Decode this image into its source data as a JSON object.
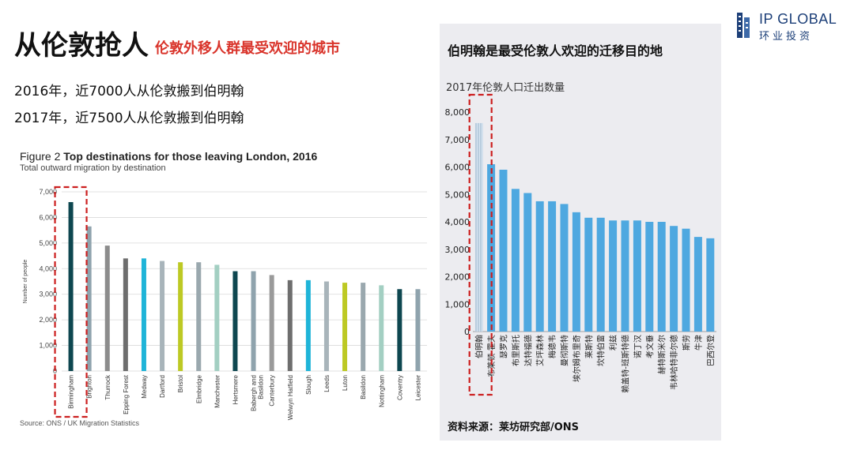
{
  "header": {
    "title": "从伦敦抢人",
    "subtitle": "伦敦外移人群最受欢迎的城市",
    "lines": [
      "2016年，近7000人从伦敦搬到伯明翰",
      "2017年，近7500人从伦敦搬到伯明翰"
    ]
  },
  "logo": {
    "name": "IP GLOBAL",
    "tagline": "环业投资",
    "icon": "building-icon",
    "color": "#1c3f78"
  },
  "left_figure": {
    "label": "Figure 2",
    "title": "Top destinations for those leaving London, 2016",
    "subtitle": "Total outward migration by destination",
    "source": "Source: ONS / UK Migration Statistics"
  },
  "right_figure": {
    "title": "伯明翰是最受伦敦人欢迎的迁移目的地",
    "subtitle": "2017年伦敦人口迁出数量",
    "source": "资料来源：莱坊研究部/ONS"
  },
  "highlight_color": "#cc1f1f",
  "chart_data": [
    {
      "type": "bar",
      "title": "Top destinations for those leaving London, 2016",
      "subtitle": "Total outward migration by destination",
      "ylabel": "Number of people",
      "ylim": [
        0,
        7000
      ],
      "yticks": [
        "0",
        "1,000",
        "2,000",
        "3,000",
        "4,000",
        "5,000",
        "6,000",
        "7,000"
      ],
      "grid": true,
      "highlight": "Birmingham",
      "categories": [
        "Birmingham",
        "Brighton",
        "Thurrock",
        "Epping Forest",
        "Medway",
        "Dartford",
        "Bristol",
        "Elmbridge",
        "Manchester",
        "Hertsmere",
        "Babergh and Basildon",
        "Canterbury",
        "Welwyn Hatfield",
        "Slough",
        "Leeds",
        "Luton",
        "Basildon",
        "Nottingham",
        "Coventry",
        "Leicester"
      ],
      "tick_labels": [
        "Birmingham",
        "Brighton",
        "Thurrock",
        "Epping Forest",
        "Medway",
        "Dartford",
        "Bristol",
        "Elmbridge",
        "Manchester",
        "Hertsmere",
        "Babergh and\nBasildon",
        "Canterbury",
        "Welwyn Hatfield",
        "Slough",
        "Leeds",
        "Luton",
        "Basildon",
        "Nottingham",
        "Coventry",
        "Leicester"
      ],
      "values": [
        6600,
        5650,
        4900,
        4400,
        4400,
        4300,
        4250,
        4250,
        4150,
        3900,
        3900,
        3750,
        3550,
        3550,
        3500,
        3450,
        3450,
        3350,
        3200,
        3200
      ],
      "colors": [
        "#0e4750",
        "#8fa3ad",
        "#8c8c8c",
        "#6e6e6e",
        "#1fb4d8",
        "#a8b4ba",
        "#bdc924",
        "#9aa8ae",
        "#a3cfc2",
        "#0e4750",
        "#8fa3ad",
        "#9a9a9a",
        "#6e6e6e",
        "#1fb4d8",
        "#a8b4ba",
        "#bdc924",
        "#9aa8ae",
        "#a3cfc2",
        "#0e4750",
        "#8fa3ad"
      ]
    },
    {
      "type": "bar",
      "title": "伯明翰是最受伦敦人欢迎的迁移目的地",
      "subtitle": "2017年伦敦人口迁出数量",
      "ylim": [
        0,
        8000
      ],
      "yticks": [
        "0",
        "1,000",
        "2,000",
        "3,000",
        "4,000",
        "5,000",
        "6,000",
        "7,000",
        "8,000"
      ],
      "grid": false,
      "highlight": "伯明翰",
      "categories": [
        "伯明翰",
        "布莱顿-霍夫",
        "瑟罗克",
        "布里斯托",
        "达特福德",
        "艾坪森林",
        "梅德韦",
        "曼彻斯特",
        "埃尔姆布里奇",
        "莱斯特",
        "坎特伯雷",
        "利兹",
        "赖盖特-班斯特德",
        "诺丁汉",
        "考文垂",
        "赫特斯米尔",
        "韦林哈特菲尔德",
        "斯劳",
        "牛津",
        "巴西尔登"
      ],
      "values": [
        7600,
        6100,
        5900,
        5200,
        5050,
        4750,
        4750,
        4650,
        4350,
        4150,
        4150,
        4050,
        4050,
        4050,
        4000,
        4000,
        3850,
        3750,
        3450,
        3400
      ],
      "colors": [
        "#bcd9ee",
        "#4ea8e0",
        "#4ea8e0",
        "#4ea8e0",
        "#4ea8e0",
        "#4ea8e0",
        "#4ea8e0",
        "#4ea8e0",
        "#4ea8e0",
        "#4ea8e0",
        "#4ea8e0",
        "#4ea8e0",
        "#4ea8e0",
        "#4ea8e0",
        "#4ea8e0",
        "#4ea8e0",
        "#4ea8e0",
        "#4ea8e0",
        "#4ea8e0",
        "#4ea8e0"
      ]
    }
  ]
}
